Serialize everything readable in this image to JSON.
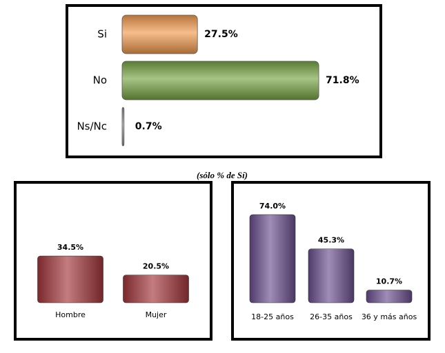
{
  "caption": "(sólo % de Sí)",
  "chart_data": [
    {
      "type": "bar",
      "orientation": "horizontal",
      "categories": [
        "Si",
        "No",
        "Ns/Nc"
      ],
      "values": [
        27.5,
        71.8,
        0.7
      ],
      "value_labels": [
        "27.5%",
        "71.8%",
        "0.7%"
      ],
      "colors": [
        "#f29a4e",
        "#77a443",
        "#9a9a9a"
      ]
    },
    {
      "type": "bar",
      "orientation": "vertical",
      "categories": [
        "Hombre",
        "Mujer"
      ],
      "values": [
        34.5,
        20.5
      ],
      "value_labels": [
        "34.5%",
        "20.5%"
      ],
      "color": "#a3363a"
    },
    {
      "type": "bar",
      "orientation": "vertical",
      "categories": [
        "18-25 años",
        "26-35 años",
        "36 y más años"
      ],
      "values": [
        74.0,
        45.3,
        10.7
      ],
      "value_labels": [
        "74.0%",
        "45.3%",
        "10.7%"
      ],
      "color": "#6b4f8e"
    }
  ]
}
